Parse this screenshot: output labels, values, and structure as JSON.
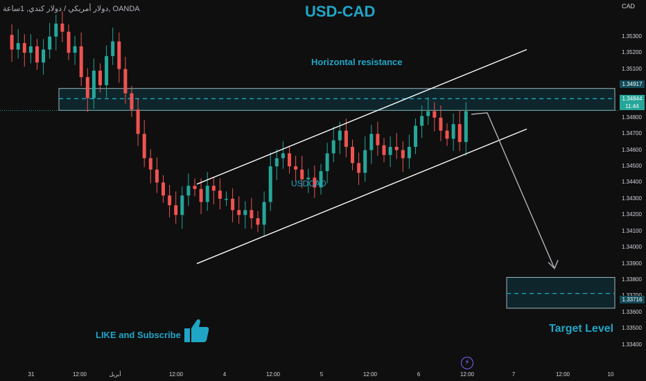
{
  "header": {
    "title": "USD-CAD",
    "symbol_description": "دولار أمريكي / دولار كندي, 1ساعة, OANDA",
    "currency": "CAD"
  },
  "annotations": {
    "horizontal_resistance": "Horizontal resistance",
    "pair_label": "USDCAD",
    "like_subscribe": "LIKE and Subscribe",
    "target_level": "Target Level"
  },
  "price_tags": {
    "resistance": "1.34917",
    "current_price": "1.34844",
    "current_time": "11:44",
    "target": "1.33716"
  },
  "icons": {
    "like": "thumbs-up-icon",
    "events": "lightning-icon"
  },
  "colors": {
    "background": "#0f0f0f",
    "up_candle": "#26a69a",
    "down_candle": "#ef5350",
    "accent": "#1fa6c7",
    "channel": "#ffffff",
    "projection_arrow": "#b2b5be"
  },
  "chart_data": {
    "type": "candlestick",
    "title": "USD-CAD",
    "y_axis": {
      "currency": "CAD",
      "range": [
        1.3333,
        1.3544
      ],
      "ticks": [
        "1.35300",
        "1.35200",
        "1.35100",
        "1.35000",
        "1.34900",
        "1.34800",
        "1.34700",
        "1.34600",
        "1.34500",
        "1.34400",
        "1.34300",
        "1.34200",
        "1.34100",
        "1.34000",
        "1.33900",
        "1.33800",
        "1.33700",
        "1.33600",
        "1.33500",
        "1.33400"
      ]
    },
    "x_axis": {
      "ticks": [
        "31",
        "12:00",
        "أبريل",
        "12:00",
        "4",
        "12:00",
        "5",
        "12:00",
        "6",
        "12:00",
        "7",
        "12:00",
        "10"
      ]
    },
    "close_path": [
      1.3531,
      1.3522,
      1.3526,
      1.352,
      1.3524,
      1.3514,
      1.3522,
      1.353,
      1.3538,
      1.3533,
      1.352,
      1.3524,
      1.3505,
      1.3492,
      1.3509,
      1.35,
      1.3518,
      1.3527,
      1.351,
      1.3495,
      1.3485,
      1.347,
      1.3455,
      1.3448,
      1.344,
      1.3432,
      1.3426,
      1.342,
      1.3432,
      1.3438,
      1.3436,
      1.3428,
      1.3438,
      1.3435,
      1.343,
      1.343,
      1.3423,
      1.342,
      1.3423,
      1.3418,
      1.3414,
      1.3428,
      1.345,
      1.3455,
      1.3458,
      1.345,
      1.3448,
      1.3442,
      1.3443,
      1.3437,
      1.3447,
      1.3458,
      1.3466,
      1.3472,
      1.3462,
      1.3452,
      1.3446,
      1.346,
      1.347,
      1.3463,
      1.3457,
      1.3462,
      1.346,
      1.3455,
      1.3462,
      1.3475,
      1.3481,
      1.3484,
      1.348,
      1.3472,
      1.3467,
      1.3476,
      1.3465,
      1.3484
    ],
    "zones": [
      {
        "name": "Horizontal resistance",
        "from": 1.34845,
        "to": 1.3498,
        "level": 1.34917
      },
      {
        "name": "Target Level",
        "from": 1.33625,
        "to": 1.33815,
        "level": 1.33716
      }
    ],
    "current_price": 1.34844,
    "channel": {
      "upper": [
        {
          "x_index": 34,
          "y": 1.3439
        },
        {
          "x_index": 88,
          "y": 1.3522
        }
      ],
      "lower": [
        {
          "x_index": 34,
          "y": 1.339
        },
        {
          "x_index": 88,
          "y": 1.3473
        }
      ]
    },
    "projection": {
      "from": 1.3483,
      "to": 1.3387
    },
    "grid": false
  }
}
